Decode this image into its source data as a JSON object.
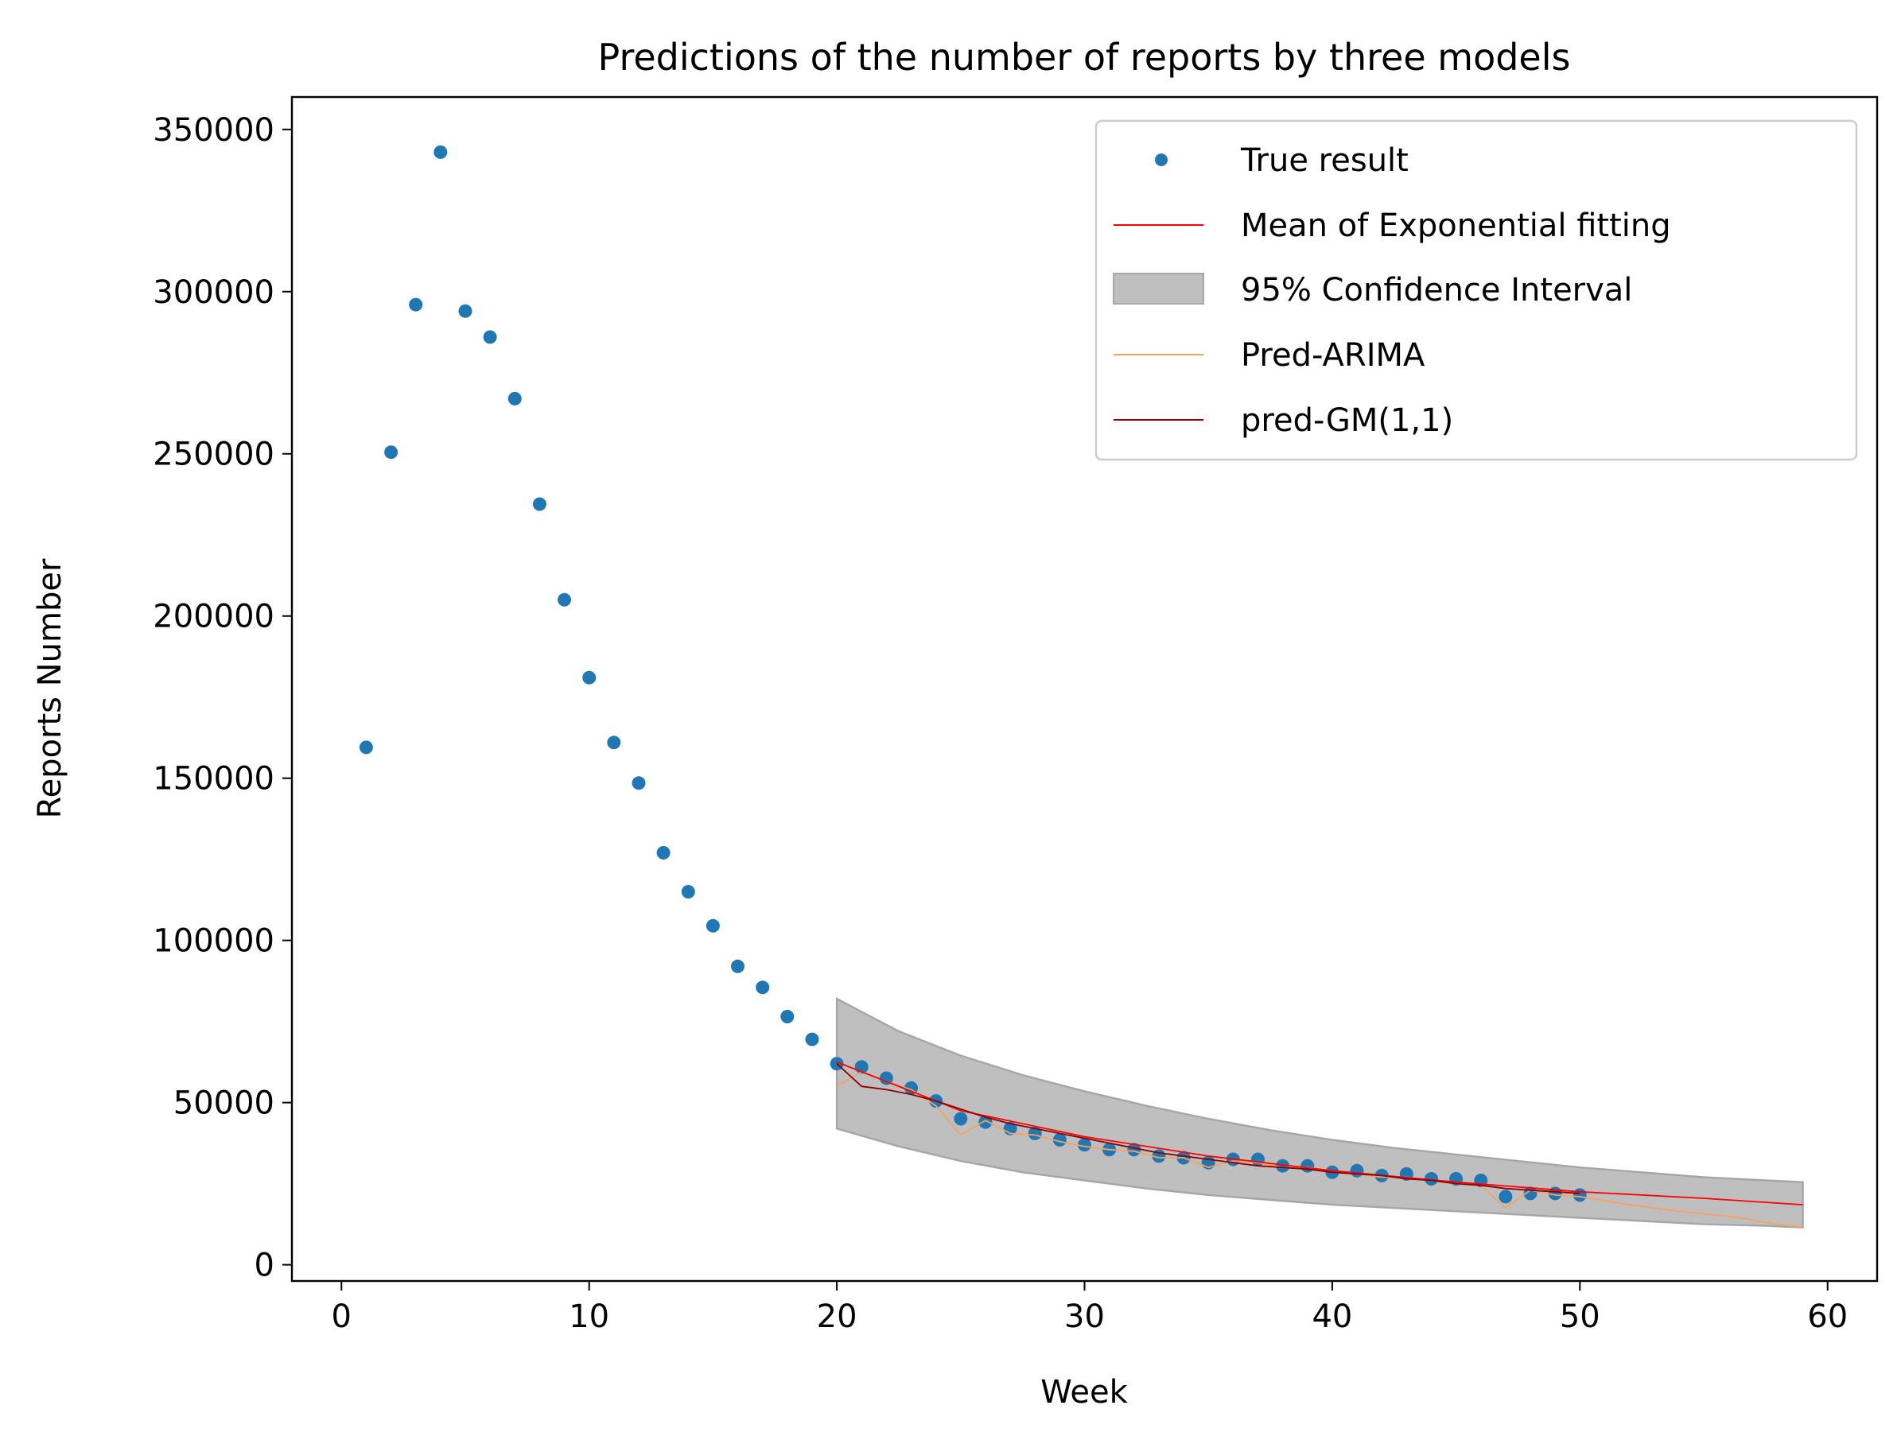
{
  "chart_data": {
    "type": "scatter",
    "title": "Predictions of the number of reports by three models",
    "xlabel": "Week",
    "ylabel": "Reports Number",
    "xlim": [
      -2,
      62
    ],
    "ylim": [
      -5000,
      360000
    ],
    "xticks": [
      0,
      10,
      20,
      30,
      40,
      50,
      60
    ],
    "yticks": [
      0,
      50000,
      100000,
      150000,
      200000,
      250000,
      300000,
      350000
    ],
    "grid": false,
    "legend_position": "upper right",
    "legend": {
      "true": "True result",
      "mean": "Mean of Exponential fitting",
      "ci": "95% Confidence Interval",
      "arima": "Pred-ARIMA",
      "gm": "pred-GM(1,1)"
    },
    "colors": {
      "true": "#1f77b4",
      "mean": "#ff0000",
      "ci_fill": "#bfbfbf",
      "ci_edge": "#a6a6a6",
      "arima": "#f4a460",
      "gm": "#8b0000"
    },
    "true_result": {
      "x": [
        1,
        2,
        3,
        4,
        5,
        6,
        7,
        8,
        9,
        10,
        11,
        12,
        13,
        14,
        15,
        16,
        17,
        18,
        19,
        20,
        21,
        22,
        23,
        24,
        25,
        26,
        27,
        28,
        29,
        30,
        31,
        32,
        33,
        34,
        35,
        36,
        37,
        38,
        39,
        40,
        41,
        42,
        43,
        44,
        45,
        46,
        47,
        48,
        49,
        50
      ],
      "y": [
        159500,
        250500,
        296000,
        343000,
        294000,
        286000,
        267000,
        234500,
        205000,
        181000,
        161000,
        148500,
        127000,
        115000,
        104500,
        92000,
        85500,
        76500,
        69500,
        62000,
        61000,
        57500,
        54500,
        50500,
        45000,
        44000,
        42000,
        40500,
        38500,
        37000,
        35500,
        35500,
        33500,
        33000,
        31500,
        32500,
        32500,
        30500,
        30500,
        28500,
        29000,
        27500,
        28000,
        26500,
        26500,
        26000,
        21000,
        22000,
        22000,
        21500
      ]
    },
    "mean_exponential": {
      "x": [
        20,
        25,
        30,
        35,
        40,
        45,
        50,
        55,
        59
      ],
      "y": [
        62500,
        47500,
        39500,
        33500,
        29000,
        25500,
        22500,
        20500,
        18500
      ]
    },
    "confidence_interval": {
      "x": [
        20,
        22.5,
        25,
        27.5,
        30,
        32.5,
        35,
        37.5,
        40,
        42.5,
        45,
        47.5,
        50,
        52.5,
        55,
        57.5,
        59
      ],
      "lower": [
        42000,
        36500,
        32000,
        28500,
        26000,
        23500,
        21500,
        20000,
        18500,
        17500,
        16500,
        15500,
        14500,
        13500,
        12500,
        12000,
        11500
      ],
      "upper": [
        82000,
        72000,
        64500,
        58500,
        53500,
        49000,
        45000,
        41500,
        38500,
        36000,
        34000,
        32000,
        30000,
        28500,
        27000,
        26000,
        25500
      ]
    },
    "pred_arima": {
      "x": [
        20,
        21,
        22,
        23,
        24,
        25,
        26,
        27,
        28,
        29,
        30,
        31,
        32,
        33,
        34,
        35,
        36,
        37,
        38,
        39,
        40,
        41,
        42,
        43,
        44,
        45,
        46,
        47,
        48,
        49,
        50,
        52,
        54,
        56,
        58,
        59
      ],
      "y": [
        55000,
        59500,
        56500,
        54000,
        49000,
        40000,
        44500,
        40500,
        40000,
        38000,
        36500,
        35500,
        35000,
        33000,
        33000,
        30000,
        32000,
        31500,
        30000,
        30000,
        29000,
        28000,
        27000,
        27000,
        26000,
        25000,
        24500,
        17500,
        23000,
        21500,
        21000,
        18500,
        16500,
        15000,
        12500,
        11500
      ]
    },
    "pred_gm": {
      "x": [
        20,
        21,
        22,
        23,
        24,
        25,
        26,
        27,
        28,
        29,
        30,
        31,
        32,
        33,
        34,
        35,
        36,
        37,
        38,
        39,
        40,
        41,
        42,
        43,
        44,
        45,
        46,
        47,
        48,
        49,
        50
      ],
      "y": [
        62000,
        55000,
        54000,
        52500,
        50500,
        48000,
        45500,
        43500,
        42000,
        40500,
        39000,
        37500,
        36000,
        34500,
        33500,
        32500,
        31500,
        30500,
        30000,
        29500,
        28500,
        28000,
        27500,
        26500,
        26000,
        25000,
        24500,
        23500,
        23000,
        22500,
        22000
      ]
    }
  }
}
